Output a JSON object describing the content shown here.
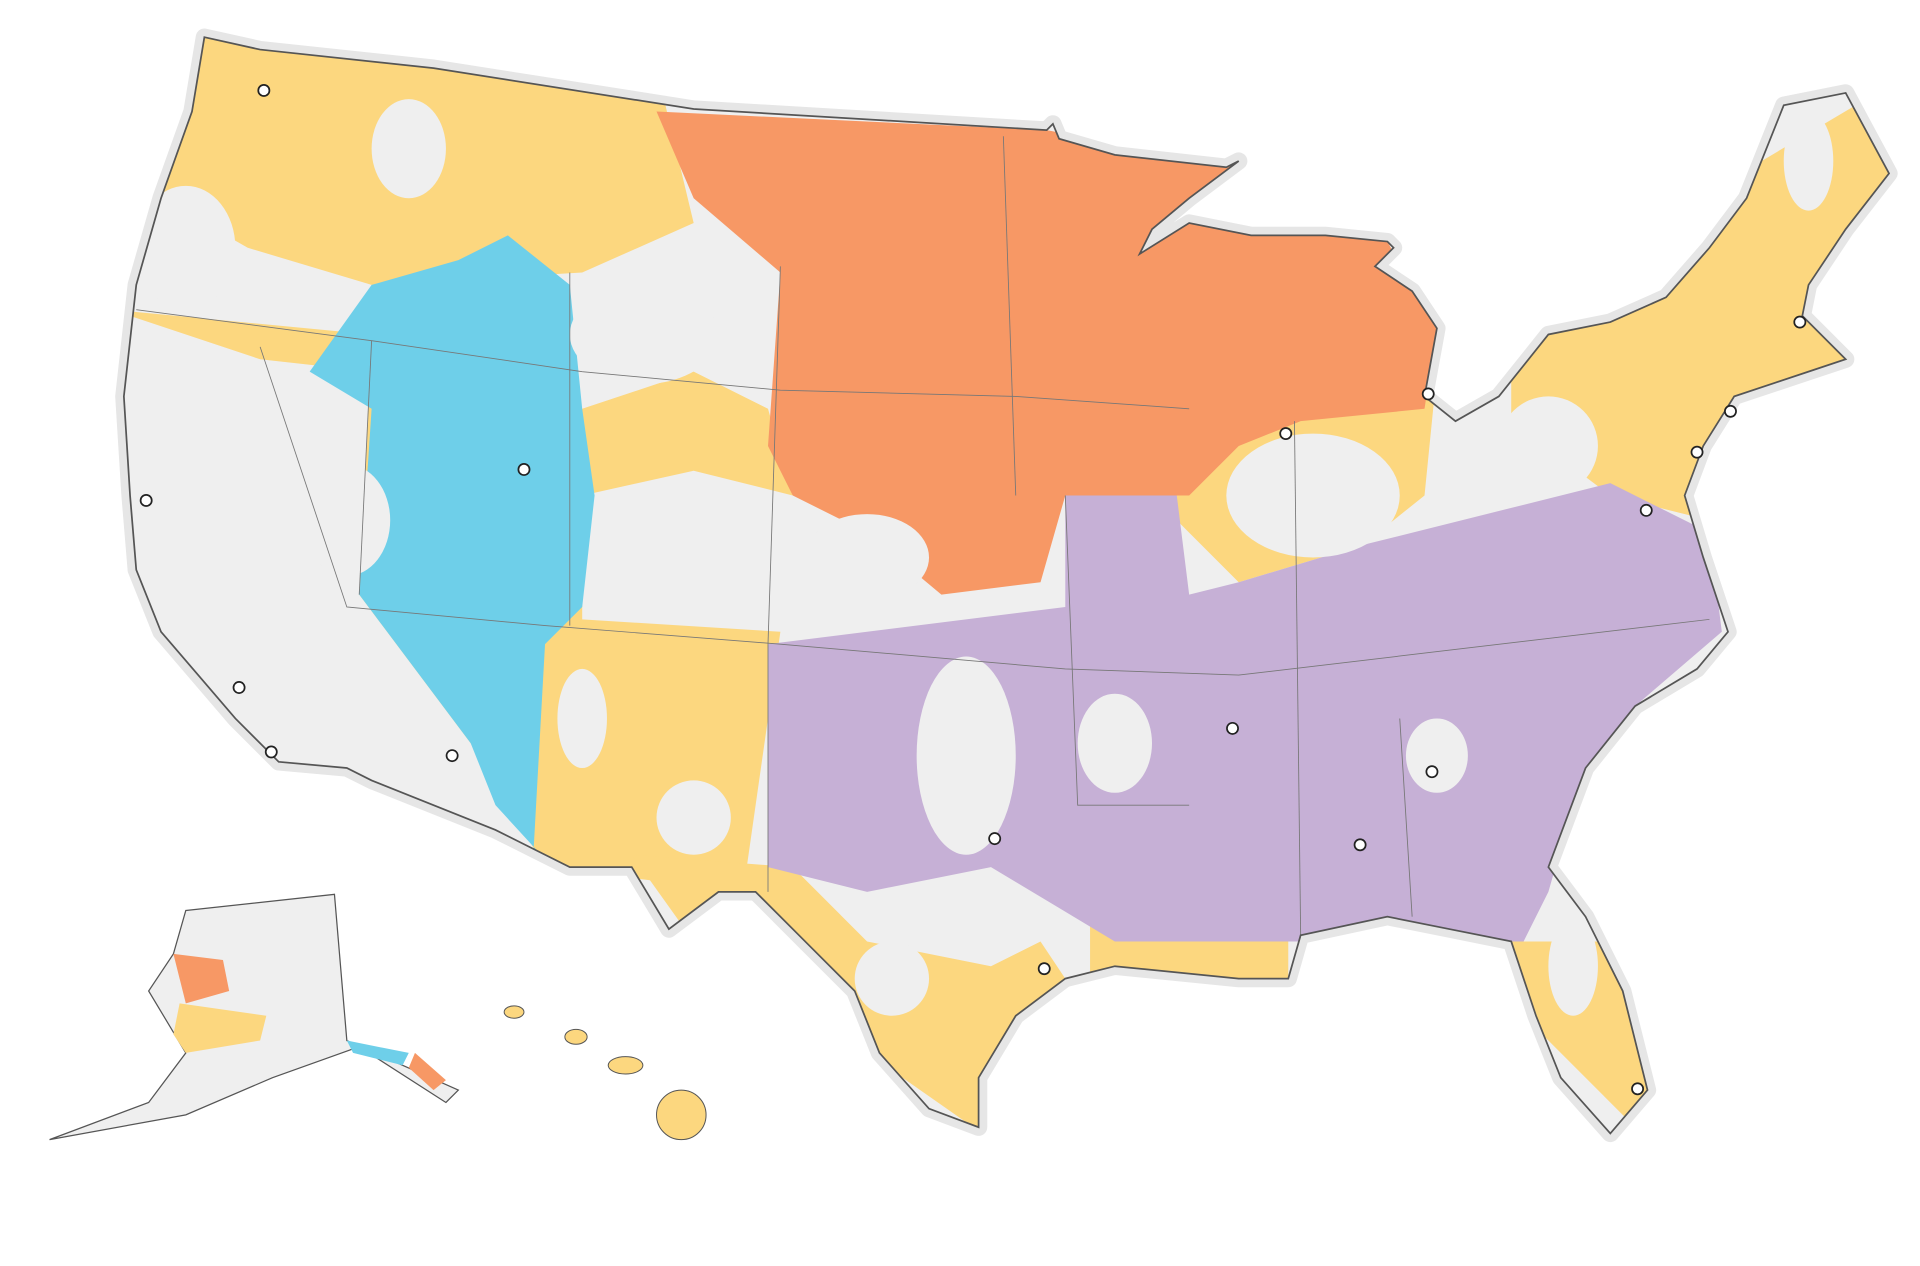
{
  "map": {
    "fill_colors": {
      "base": "#efefef",
      "yellow": "#fcd77f",
      "orange": "#f79865",
      "blue": "#6ecfe9",
      "purple": "#c6b0d6",
      "halo": "#e6e6e6",
      "border": "#555555"
    }
  }
}
